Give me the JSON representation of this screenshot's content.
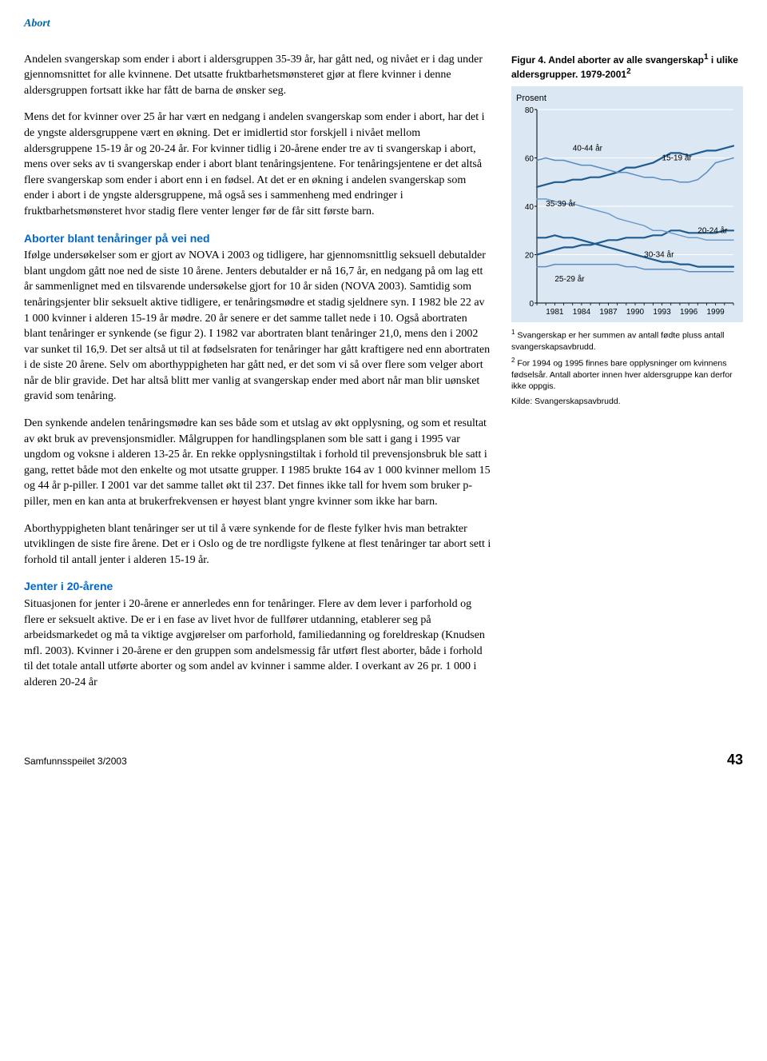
{
  "header": {
    "section": "Abort"
  },
  "main": {
    "paragraphs": [
      "Andelen svangerskap som ender i abort i aldersgruppen 35-39 år, har gått ned, og nivået er i dag under gjennomsnittet for alle kvinnene. Det utsatte fruktbarhetsmønsteret gjør at flere kvinner i denne aldersgruppen fortsatt ikke har fått de barna de ønsker seg.",
      "Mens det for kvinner over 25 år har vært en nedgang i andelen svangerskap som ender i abort, har det i de yngste aldersgruppene vært en økning. Det er imidlertid stor forskjell i nivået mellom aldersgruppene 15-19 år og 20-24 år. For kvinner tidlig i 20-årene ender tre av ti svangerskap i abort, mens over seks av ti svangerskap ender i abort blant tenåringsjentene. For tenåringsjentene er det altså flere svangerskap som ender i abort enn i en fødsel. At det er en økning i andelen svangerskap som ender i abort i de yngste aldersgruppene, må også ses i sammenheng med endringer i fruktbarhetsmønsteret hvor stadig flere venter lenger før de får sitt første barn."
    ],
    "subhead1": "Aborter blant tenåringer på vei ned",
    "paragraphs2": [
      "Ifølge undersøkelser som er gjort av NOVA i 2003 og tidligere, har gjennomsnittlig seksuell debutalder blant ungdom gått noe ned de siste 10 årene. Jenters debutalder er nå 16,7 år, en nedgang på om lag ett år sammenlignet med en tilsvarende undersøkelse gjort for 10 år siden (NOVA 2003). Samtidig som tenåringsjenter blir seksuelt aktive tidligere, er tenåringsmødre et stadig sjeldnere syn. I 1982 ble 22 av 1 000 kvinner i alderen 15-19 år mødre. 20 år senere er det samme tallet nede i 10. Også abortraten blant tenåringer er synkende (se figur 2). I 1982 var abortraten blant tenåringer 21,0, mens den i 2002 var sunket til 16,9. Det ser altså ut til at fødselsraten for tenåringer har gått kraftigere ned enn abortraten i de siste 20 årene. Selv om aborthyppigheten har gått ned, er det som vi så over flere som velger abort når de blir gravide. Det har altså blitt mer vanlig at svangerskap ender med abort når man blir uønsket gravid som tenåring.",
      "Den synkende andelen tenåringsmødre kan ses både som et utslag av økt opplysning, og som et resultat av økt bruk av prevensjonsmidler. Målgruppen for handlingsplanen som ble satt i gang i 1995 var ungdom og voksne i alderen 13-25 år. En rekke opplysningstiltak i forhold til prevensjonsbruk ble satt i gang, rettet både mot den enkelte og mot utsatte grupper. I 1985 brukte 164 av 1 000 kvinner mellom 15 og 44 år p-piller. I 2001 var det samme tallet økt til 237. Det finnes ikke tall for hvem som bruker p-piller, men en kan anta at brukerfrekvensen er høyest blant yngre kvinner som ikke har barn.",
      "Aborthyppigheten blant tenåringer ser ut til å være synkende for de fleste fylker hvis man betrakter utviklingen de siste fire årene. Det er i Oslo og de tre nordligste fylkene at flest tenåringer tar abort sett i forhold til antall jenter i alderen 15-19 år."
    ],
    "subhead2": "Jenter i 20-årene",
    "paragraphs3": [
      "Situasjonen for jenter i 20-årene er annerledes enn for tenåringer. Flere av dem lever i parforhold og flere er seksuelt aktive. De er i en fase av livet hvor de fullfører utdanning, etablerer seg på arbeidsmarkedet og må ta viktige avgjørelser om parforhold, familiedanning og foreldreskap (Knudsen mfl. 2003). Kvinner i 20-årene er den gruppen som andelsmessig får utført flest aborter, både i forhold til det totale antall utførte aborter og som andel av kvinner i samme alder. I overkant av 26 pr. 1 000 i alderen 20-24 år"
    ]
  },
  "figure": {
    "caption_prefix": "Figur 4. ",
    "caption_text": "Andel aborter av alle svangerskap",
    "caption_sup": "1",
    "caption_suffix": " i ulike aldersgrupper. 1979-2001",
    "caption_sup2": "2",
    "y_axis_label": "Prosent",
    "chart": {
      "type": "line",
      "background_color": "#dbe8f4",
      "grid_color": "#ffffff",
      "axis_color": "#000000",
      "ylim": [
        0,
        80
      ],
      "ytick_step": 20,
      "xlim": [
        1979,
        2001
      ],
      "xticks": [
        1981,
        1984,
        1987,
        1990,
        1993,
        1996,
        1999
      ],
      "line_width_main": 2.2,
      "line_width_sec": 1.5,
      "font_family": "Arial",
      "tick_fontsize": 10,
      "label_fontsize": 11,
      "series": [
        {
          "name": "15-19 år",
          "label": "15-19 år",
          "color": "#1f5b8f",
          "width": 2.2,
          "label_x": 1993,
          "label_y": 59,
          "y": [
            48,
            49,
            50,
            50,
            51,
            51,
            52,
            52,
            53,
            54,
            56,
            56,
            57,
            58,
            60,
            62,
            62,
            61,
            62,
            63,
            63,
            64,
            65
          ]
        },
        {
          "name": "20-24 år",
          "label": "20-24 år",
          "color": "#1f5b8f",
          "width": 2.2,
          "label_x": 1997,
          "label_y": 29,
          "y": [
            20,
            21,
            22,
            23,
            23,
            24,
            24,
            25,
            26,
            26,
            27,
            27,
            27,
            28,
            28,
            30,
            30,
            29,
            29,
            29,
            29,
            30,
            30
          ]
        },
        {
          "name": "25-29 år",
          "label": "25-29 år",
          "color": "#5a8abf",
          "width": 1.5,
          "label_x": 1981,
          "label_y": 9,
          "y": [
            15,
            15,
            16,
            16,
            16,
            16,
            16,
            16,
            16,
            16,
            15,
            15,
            14,
            14,
            14,
            14,
            14,
            13,
            13,
            13,
            13,
            13,
            13
          ]
        },
        {
          "name": "30-34 år",
          "label": "30-34 år",
          "color": "#1f5b8f",
          "width": 2.2,
          "label_x": 1991,
          "label_y": 19,
          "y": [
            27,
            27,
            28,
            27,
            27,
            26,
            25,
            24,
            23,
            22,
            21,
            20,
            19,
            18,
            17,
            17,
            16,
            16,
            15,
            15,
            15,
            15,
            15
          ]
        },
        {
          "name": "35-39 år",
          "label": "35-39 år",
          "color": "#6d9acb",
          "width": 1.5,
          "label_x": 1980,
          "label_y": 40,
          "y": [
            43,
            43,
            42,
            41,
            41,
            40,
            39,
            38,
            37,
            35,
            34,
            33,
            32,
            30,
            30,
            29,
            28,
            27,
            27,
            26,
            26,
            26,
            26
          ]
        },
        {
          "name": "40-44 år",
          "label": "40-44 år",
          "color": "#5a8abf",
          "width": 1.5,
          "label_x": 1983,
          "label_y": 63,
          "y": [
            59,
            60,
            59,
            59,
            58,
            57,
            57,
            56,
            55,
            54,
            54,
            53,
            52,
            52,
            51,
            51,
            50,
            50,
            51,
            54,
            58,
            59,
            60
          ]
        }
      ]
    },
    "footnote1_sup": "1",
    "footnote1": " Svangerskap er her summen av antall fødte pluss antall svangerskapsavbrudd.",
    "footnote2_sup": "2",
    "footnote2": " For 1994 og 1995 finnes bare opplysninger om kvinnens fødselsår. Antall aborter innen hver aldersgruppe kan derfor ikke oppgis.",
    "source": "Kilde: Svangerskapsavbrudd."
  },
  "footer": {
    "pub": "Samfunnsspeilet 3/2003",
    "page": "43"
  }
}
